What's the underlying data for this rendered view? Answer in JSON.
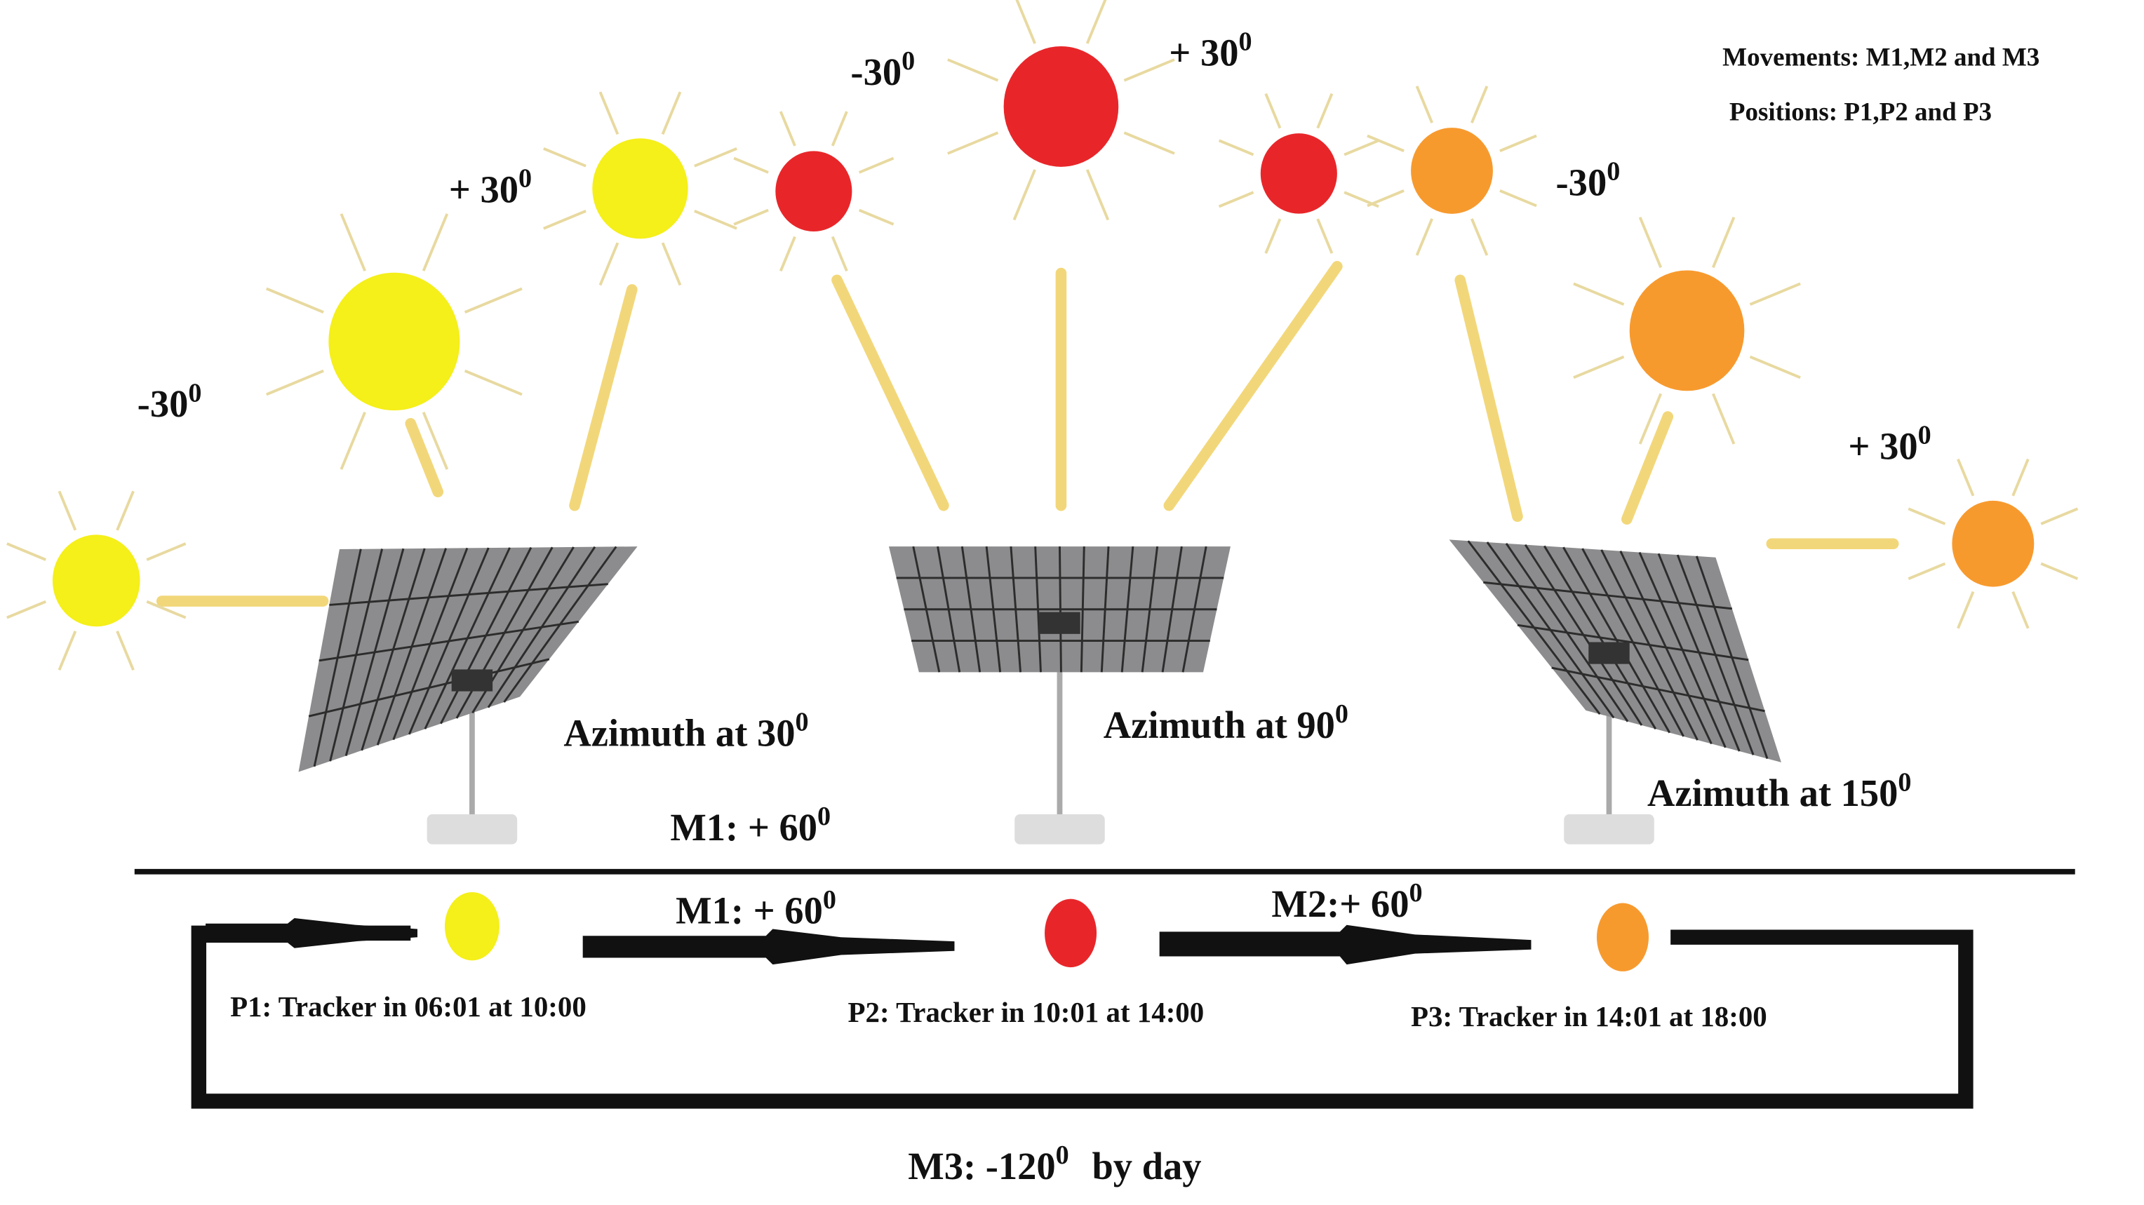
{
  "legend": {
    "movements": "Movements: M1,M2 and M3",
    "positions": "Positions: P1,P2 and P3"
  },
  "angle_labels": [
    {
      "text": "-30",
      "sup": "0"
    },
    {
      "text": "+ 30",
      "sup": "0"
    },
    {
      "text": "-30",
      "sup": "0"
    },
    {
      "text": "+ 30",
      "sup": "0"
    },
    {
      "text": "-30",
      "sup": "0"
    },
    {
      "text": "+ 30",
      "sup": "0"
    }
  ],
  "azimuth_labels": [
    {
      "text": "Azimuth at 30",
      "sup": "0"
    },
    {
      "text": "Azimuth at 90",
      "sup": "0"
    },
    {
      "text": "Azimuth at 150",
      "sup": "0"
    }
  ],
  "movement_labels": [
    {
      "text": "M1: + 60",
      "sup": "0"
    },
    {
      "text": "M1: + 60",
      "sup": "0"
    },
    {
      "text": "M2:+ 60",
      "sup": "0"
    },
    {
      "text": "M3: -120",
      "sup": "0",
      "after": "by day"
    }
  ],
  "position_labels": [
    "P1: Tracker in 06:01 at 10:00",
    "P2: Tracker in 10:01 at 14:00",
    "P3: Tracker in 14:01 at 18:00"
  ]
}
